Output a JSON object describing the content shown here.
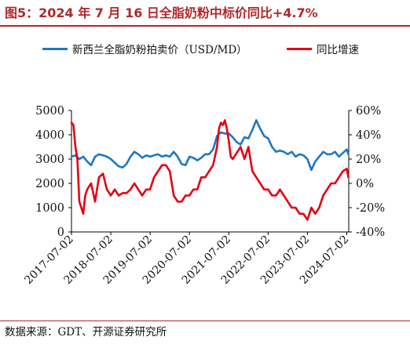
{
  "header": {
    "title": "图5：2024 年 7 月 16 日全脂奶粉中标价同比+4.7%"
  },
  "footer": {
    "source": "数据来源：GDT、开源证券研究所"
  },
  "chart_data": {
    "type": "line",
    "title": "图5：2024 年 7 月 16 日全脂奶粉中标价同比+4.7%",
    "x_tick_labels": [
      "2017-07-02",
      "2018-07-02",
      "2019-07-02",
      "2020-07-02",
      "2021-07-02",
      "2022-07-02",
      "2023-07-02",
      "2024-07-02"
    ],
    "x_tick_years": [
      2017.5,
      2018.5,
      2019.5,
      2020.5,
      2021.5,
      2022.5,
      2023.5,
      2024.5
    ],
    "xlim": [
      2017.5,
      2024.55
    ],
    "left_axis": {
      "ylim": [
        0,
        5000
      ],
      "ticks": [
        0,
        1000,
        2000,
        3000,
        4000,
        5000
      ],
      "labels": [
        "0",
        "1000",
        "2000",
        "3000",
        "4000",
        "5000"
      ]
    },
    "right_axis": {
      "ylim": [
        -40,
        60
      ],
      "ticks": [
        -40,
        -20,
        0,
        20,
        40,
        60
      ],
      "labels": [
        "-40%",
        "-20%",
        "0%",
        "20%",
        "40%",
        "60%"
      ]
    },
    "legend_position": "top",
    "grid": false,
    "series": [
      {
        "name": "新西兰全脂奶粉拍卖价（USD/MD）",
        "axis": "left",
        "color": "#1f77c2",
        "x": [
          2017.5,
          2017.6,
          2017.7,
          2017.8,
          2017.9,
          2018.0,
          2018.1,
          2018.2,
          2018.3,
          2018.4,
          2018.5,
          2018.6,
          2018.7,
          2018.8,
          2018.9,
          2019.0,
          2019.1,
          2019.2,
          2019.3,
          2019.4,
          2019.5,
          2019.6,
          2019.7,
          2019.8,
          2019.9,
          2020.0,
          2020.1,
          2020.2,
          2020.3,
          2020.4,
          2020.5,
          2020.6,
          2020.7,
          2020.8,
          2020.9,
          2021.0,
          2021.1,
          2021.2,
          2021.3,
          2021.4,
          2021.5,
          2021.6,
          2021.7,
          2021.8,
          2021.9,
          2022.0,
          2022.1,
          2022.2,
          2022.3,
          2022.4,
          2022.5,
          2022.6,
          2022.7,
          2022.8,
          2022.9,
          2023.0,
          2023.1,
          2023.2,
          2023.3,
          2023.4,
          2023.5,
          2023.6,
          2023.7,
          2023.8,
          2023.9,
          2024.0,
          2024.1,
          2024.2,
          2024.3,
          2024.4,
          2024.5,
          2024.54
        ],
        "values": [
          3100,
          3150,
          3000,
          3100,
          2900,
          2750,
          3100,
          3200,
          3150,
          3100,
          3000,
          2850,
          2700,
          2650,
          2800,
          3100,
          3300,
          3200,
          3050,
          3150,
          3100,
          3150,
          3200,
          3100,
          3150,
          3100,
          3300,
          3100,
          2800,
          2750,
          3100,
          3050,
          2950,
          3050,
          3200,
          3200,
          3400,
          3950,
          4100,
          4050,
          4050,
          3900,
          3700,
          3600,
          3900,
          3850,
          4200,
          4600,
          4250,
          3950,
          3850,
          3500,
          3300,
          3350,
          3300,
          3200,
          3300,
          3100,
          3200,
          3150,
          3000,
          2550,
          2900,
          3100,
          3300,
          3200,
          3200,
          3300,
          3100,
          3250,
          3400,
          3200
        ]
      },
      {
        "name": "同比增速",
        "axis": "right",
        "color": "#e60012",
        "x": [
          2017.5,
          2017.55,
          2017.6,
          2017.65,
          2017.7,
          2017.75,
          2017.8,
          2017.85,
          2017.9,
          2018.0,
          2018.1,
          2018.2,
          2018.3,
          2018.4,
          2018.5,
          2018.6,
          2018.7,
          2018.8,
          2018.9,
          2019.0,
          2019.1,
          2019.2,
          2019.3,
          2019.4,
          2019.5,
          2019.6,
          2019.7,
          2019.8,
          2019.9,
          2020.0,
          2020.1,
          2020.2,
          2020.3,
          2020.4,
          2020.5,
          2020.6,
          2020.7,
          2020.8,
          2020.9,
          2021.0,
          2021.1,
          2021.2,
          2021.25,
          2021.3,
          2021.35,
          2021.4,
          2021.45,
          2021.5,
          2021.55,
          2021.6,
          2021.7,
          2021.8,
          2021.9,
          2022.0,
          2022.1,
          2022.2,
          2022.3,
          2022.4,
          2022.5,
          2022.6,
          2022.7,
          2022.8,
          2022.9,
          2023.0,
          2023.1,
          2023.2,
          2023.3,
          2023.4,
          2023.5,
          2023.6,
          2023.7,
          2023.8,
          2023.9,
          2024.0,
          2024.1,
          2024.2,
          2024.3,
          2024.4,
          2024.5,
          2024.54
        ],
        "values": [
          50,
          48,
          30,
          20,
          -15,
          -20,
          -25,
          -10,
          -5,
          0,
          -15,
          5,
          8,
          -5,
          -10,
          -5,
          -10,
          -8,
          -8,
          -5,
          0,
          -5,
          -10,
          -5,
          -5,
          5,
          10,
          15,
          15,
          10,
          -10,
          -15,
          -15,
          -10,
          -10,
          -5,
          -5,
          5,
          5,
          10,
          15,
          30,
          45,
          50,
          48,
          52,
          45,
          35,
          22,
          20,
          25,
          30,
          20,
          30,
          10,
          5,
          0,
          -5,
          -5,
          -10,
          -10,
          -5,
          -10,
          -15,
          -20,
          -20,
          -25,
          -25,
          -30,
          -20,
          -25,
          -20,
          -10,
          -5,
          0,
          0,
          5,
          10,
          12,
          5
        ]
      }
    ]
  }
}
